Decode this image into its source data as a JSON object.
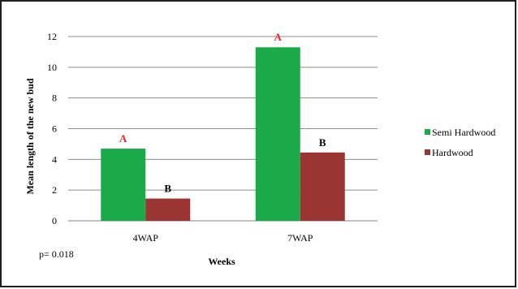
{
  "chart_data": {
    "type": "bar",
    "categories": [
      "4WAP",
      "7WAP"
    ],
    "series": [
      {
        "name": "Semi Hardwood",
        "values": [
          4.7,
          11.3
        ],
        "color": "#1aaa4a",
        "labels": [
          "A",
          "A"
        ],
        "label_color": "#e8262a"
      },
      {
        "name": "Hardwood",
        "values": [
          1.45,
          4.45
        ],
        "color": "#9b3533",
        "labels": [
          "B",
          "B"
        ],
        "label_color": "#000000"
      }
    ],
    "xlabel": "Weeks",
    "ylabel": "Mean length of the new bud",
    "ylim": [
      0,
      12
    ],
    "yticks": [
      0,
      2,
      4,
      6,
      8,
      10,
      12
    ],
    "grid": true,
    "legend_position": "right",
    "annotation": "p= 0.018"
  }
}
